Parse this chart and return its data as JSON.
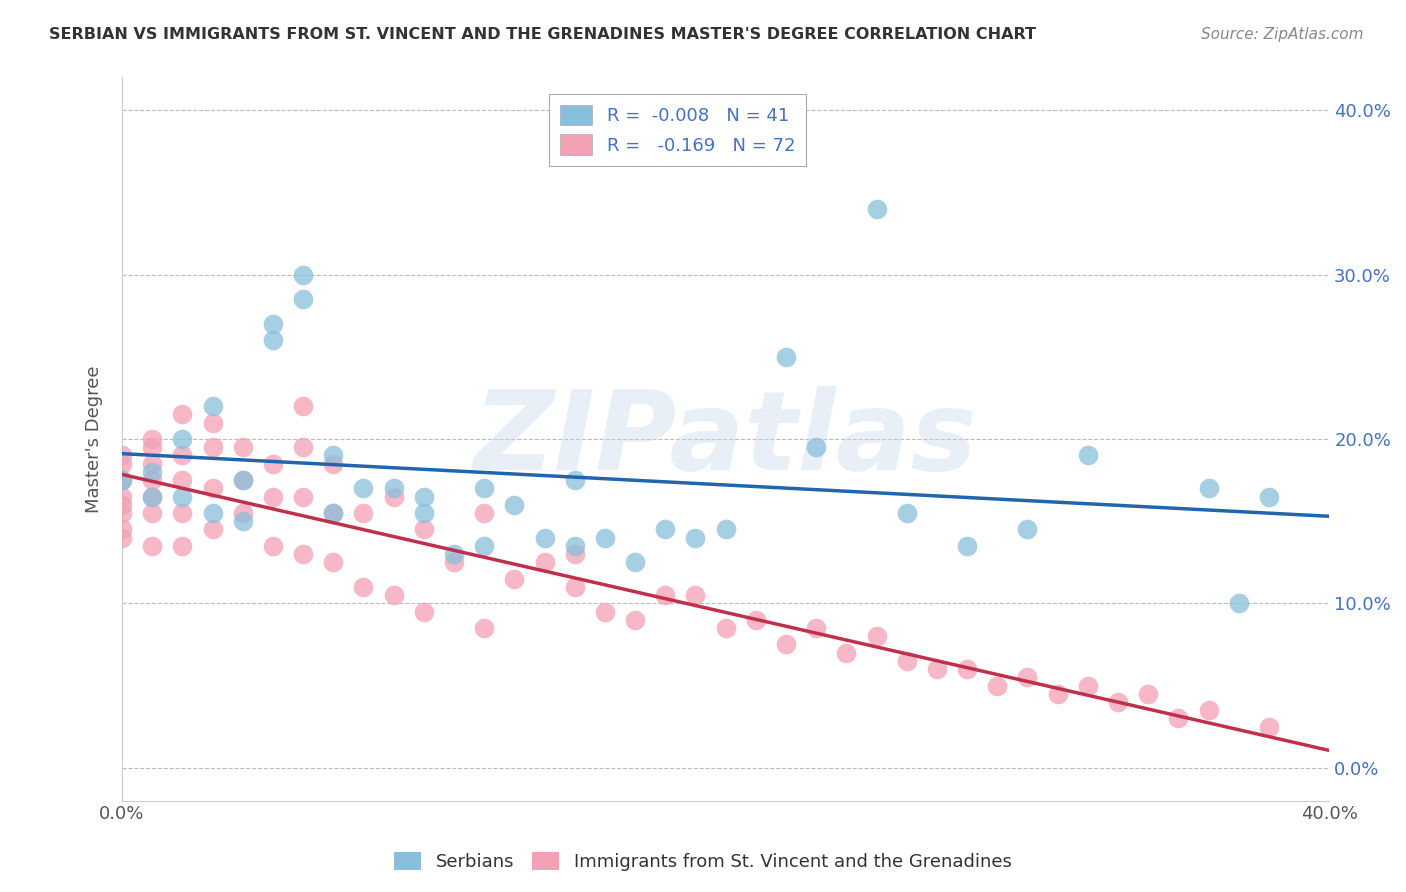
{
  "title": "SERBIAN VS IMMIGRANTS FROM ST. VINCENT AND THE GRENADINES MASTER'S DEGREE CORRELATION CHART",
  "source": "Source: ZipAtlas.com",
  "ylabel": "Master's Degree",
  "xlim": [
    0.0,
    0.4
  ],
  "ylim": [
    -0.02,
    0.42
  ],
  "yticks": [
    0.0,
    0.1,
    0.2,
    0.3,
    0.4
  ],
  "xticks": [
    0.0,
    0.1,
    0.2,
    0.3,
    0.4
  ],
  "yticklabels": [
    "0.0%",
    "10.0%",
    "20.0%",
    "30.0%",
    "40.0%"
  ],
  "blue_color": "#89bfdc",
  "pink_color": "#f4a0b5",
  "blue_line_color": "#2166ac",
  "pink_line_color": "#c0304a",
  "background_color": "#ffffff",
  "grid_color": "#bbbbbb",
  "watermark": "ZIPatlas",
  "blue_points_x": [
    0.0,
    0.01,
    0.01,
    0.02,
    0.02,
    0.03,
    0.03,
    0.04,
    0.04,
    0.05,
    0.05,
    0.06,
    0.06,
    0.07,
    0.07,
    0.08,
    0.09,
    0.1,
    0.1,
    0.11,
    0.12,
    0.12,
    0.13,
    0.14,
    0.15,
    0.15,
    0.16,
    0.17,
    0.18,
    0.19,
    0.2,
    0.22,
    0.23,
    0.25,
    0.26,
    0.28,
    0.3,
    0.32,
    0.36,
    0.37,
    0.38
  ],
  "blue_points_y": [
    0.175,
    0.165,
    0.18,
    0.2,
    0.165,
    0.155,
    0.22,
    0.175,
    0.15,
    0.27,
    0.26,
    0.285,
    0.3,
    0.155,
    0.19,
    0.17,
    0.17,
    0.165,
    0.155,
    0.13,
    0.17,
    0.135,
    0.16,
    0.14,
    0.135,
    0.175,
    0.14,
    0.125,
    0.145,
    0.14,
    0.145,
    0.25,
    0.195,
    0.34,
    0.155,
    0.135,
    0.145,
    0.19,
    0.17,
    0.1,
    0.165
  ],
  "pink_points_x": [
    0.0,
    0.0,
    0.0,
    0.0,
    0.0,
    0.0,
    0.0,
    0.0,
    0.01,
    0.01,
    0.01,
    0.01,
    0.01,
    0.01,
    0.01,
    0.02,
    0.02,
    0.02,
    0.02,
    0.02,
    0.03,
    0.03,
    0.03,
    0.03,
    0.04,
    0.04,
    0.04,
    0.05,
    0.05,
    0.05,
    0.06,
    0.06,
    0.06,
    0.06,
    0.07,
    0.07,
    0.07,
    0.08,
    0.08,
    0.09,
    0.09,
    0.1,
    0.1,
    0.11,
    0.12,
    0.12,
    0.13,
    0.14,
    0.15,
    0.16,
    0.17,
    0.18,
    0.19,
    0.2,
    0.22,
    0.24,
    0.26,
    0.28,
    0.3,
    0.32,
    0.34,
    0.36,
    0.38,
    0.15,
    0.21,
    0.23,
    0.25,
    0.27,
    0.29,
    0.31,
    0.33,
    0.35
  ],
  "pink_points_y": [
    0.19,
    0.185,
    0.175,
    0.165,
    0.16,
    0.155,
    0.145,
    0.14,
    0.2,
    0.195,
    0.185,
    0.175,
    0.165,
    0.155,
    0.135,
    0.215,
    0.19,
    0.175,
    0.155,
    0.135,
    0.21,
    0.195,
    0.17,
    0.145,
    0.195,
    0.175,
    0.155,
    0.185,
    0.165,
    0.135,
    0.22,
    0.195,
    0.165,
    0.13,
    0.185,
    0.155,
    0.125,
    0.155,
    0.11,
    0.165,
    0.105,
    0.145,
    0.095,
    0.125,
    0.155,
    0.085,
    0.115,
    0.125,
    0.11,
    0.095,
    0.09,
    0.105,
    0.105,
    0.085,
    0.075,
    0.07,
    0.065,
    0.06,
    0.055,
    0.05,
    0.045,
    0.035,
    0.025,
    0.13,
    0.09,
    0.085,
    0.08,
    0.06,
    0.05,
    0.045,
    0.04,
    0.03
  ],
  "legend_blue_label": "R =  -0.008   N = 41",
  "legend_pink_label": "R =   -0.169   N = 72",
  "serbians_label": "Serbians",
  "immigrants_label": "Immigrants from St. Vincent and the Grenadines"
}
